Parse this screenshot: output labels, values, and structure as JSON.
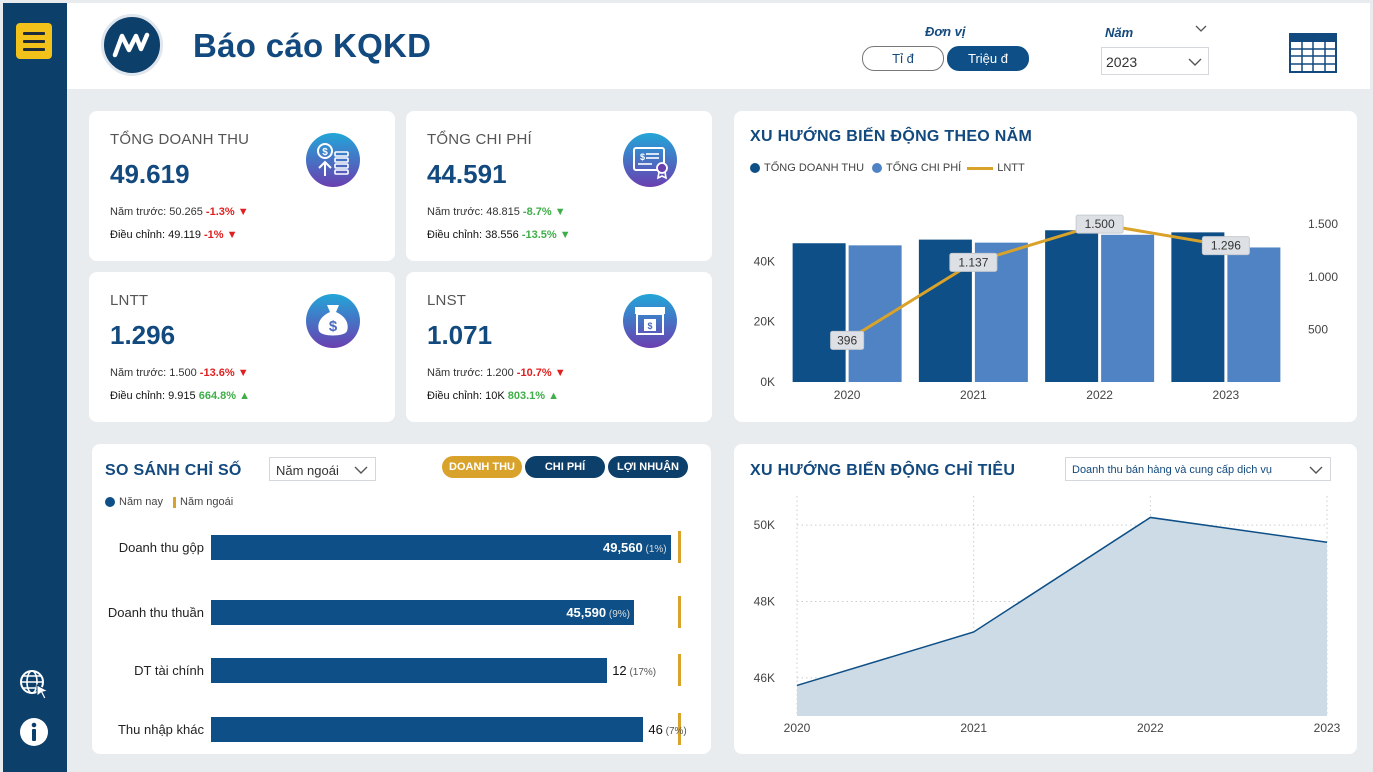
{
  "header": {
    "title": "Báo cáo KQKD",
    "unit_label": "Đơn vị",
    "unit_options": [
      "Tỉ đ",
      "Triệu đ"
    ],
    "year_label": "Năm",
    "year_value": "2023"
  },
  "kpis": [
    {
      "label": "TỔNG DOANH THU",
      "value": "49.619",
      "prev_label": "Năm trước:",
      "prev_value": "50.265",
      "prev_change": "-1.3%",
      "prev_dir": "down",
      "adj_label": "Điều chỉnh:",
      "adj_value": "49.119",
      "adj_change": "-1%",
      "adj_dir": "down",
      "icon": "money-icon"
    },
    {
      "label": "TỔNG CHI PHÍ",
      "value": "44.591",
      "prev_label": "Năm trước:",
      "prev_value": "48.815",
      "prev_change": "-8.7%",
      "prev_dir": "down",
      "adj_label": "Điều chỉnh:",
      "adj_value": "38.556",
      "adj_change": "-13.5%",
      "adj_dir": "down",
      "icon": "certificate-icon"
    },
    {
      "label": "LNTT",
      "value": "1.296",
      "prev_label": "Năm trước:",
      "prev_value": "1.500",
      "prev_change": "-13.6%",
      "prev_dir": "down",
      "adj_label": "Điều chỉnh:",
      "adj_value": "9.915",
      "adj_change": "664.8%",
      "adj_dir": "up",
      "icon": "money-bag-icon"
    },
    {
      "label": "LNST",
      "value": "1.071",
      "prev_label": "Năm trước:",
      "prev_value": "1.200",
      "prev_change": "-10.7%",
      "prev_dir": "down",
      "adj_label": "Điều chỉnh:",
      "adj_value": "10K",
      "adj_change": "803.1%",
      "adj_dir": "up",
      "icon": "store-icon"
    }
  ],
  "trend": {
    "title": "XU HƯỚNG BIẾN ĐỘNG THEO NĂM",
    "legend": [
      "TỔNG DOANH THU",
      "TỔNG CHI PHÍ",
      "LNTT"
    ]
  },
  "compare": {
    "title": "SO SÁNH CHỈ SỐ",
    "dropdown_value": "Năm ngoái",
    "tabs": [
      "DOANH THU",
      "CHI PHÍ",
      "LỢI NHUẬN"
    ],
    "legend": [
      "Năm nay",
      "Năm ngoái"
    ]
  },
  "indicator": {
    "title": "XU HƯỚNG BIẾN ĐỘNG CHỈ TIÊU",
    "dropdown_value": "Doanh thu bán hàng và cung cấp dịch vụ"
  },
  "colors": {
    "primary": "#0d4f86",
    "secondary": "#4f83c4",
    "accent": "#d9a22a",
    "negative": "#e02020",
    "positive": "#3fae49",
    "area_fill": "#cddbe6"
  },
  "chart_data": [
    {
      "type": "bar",
      "categories": [
        "2020",
        "2021",
        "2022",
        "2023"
      ],
      "series": [
        {
          "name": "TỔNG DOANH THU",
          "values": [
            46000,
            47200,
            50300,
            49600
          ]
        },
        {
          "name": "TỔNG CHI PHÍ",
          "values": [
            45300,
            46200,
            48800,
            44600
          ]
        },
        {
          "name": "LNTT",
          "type": "line",
          "axis": "right",
          "values": [
            396,
            1137,
            1500,
            1296
          ],
          "labels": [
            "396",
            "1.137",
            "1.500",
            "1.296"
          ]
        }
      ],
      "y_ticks": [
        "0K",
        "20K",
        "40K"
      ],
      "ylim": [
        0,
        60000
      ],
      "y2_ticks": [
        "500",
        "1.000",
        "1.500"
      ],
      "y2lim": [
        0,
        1720
      ],
      "legend_position": "top-left",
      "grid": false
    },
    {
      "type": "bar",
      "orientation": "horizontal",
      "categories": [
        "Doanh thu gộp",
        "Doanh thu thuần",
        "DT tài chính",
        "Thu nhập khác"
      ],
      "values": [
        49560,
        45590,
        12,
        46
      ],
      "value_labels": [
        "49,560",
        "45,590",
        "12",
        "46"
      ],
      "change_labels": [
        "(1%)",
        "(9%)",
        "(17%)",
        "(7%)"
      ],
      "bar_fraction": [
        0.978,
        0.9,
        0.843,
        0.92
      ],
      "ref_fraction": [
        0.99,
        0.99,
        0.99,
        0.99
      ]
    },
    {
      "type": "area",
      "x": [
        "2020",
        "2021",
        "2022",
        "2023"
      ],
      "values": [
        45800,
        47200,
        50200,
        49550
      ],
      "y_ticks": [
        "46K",
        "48K",
        "50K"
      ],
      "ylim": [
        45000,
        50500
      ],
      "grid": true
    }
  ]
}
